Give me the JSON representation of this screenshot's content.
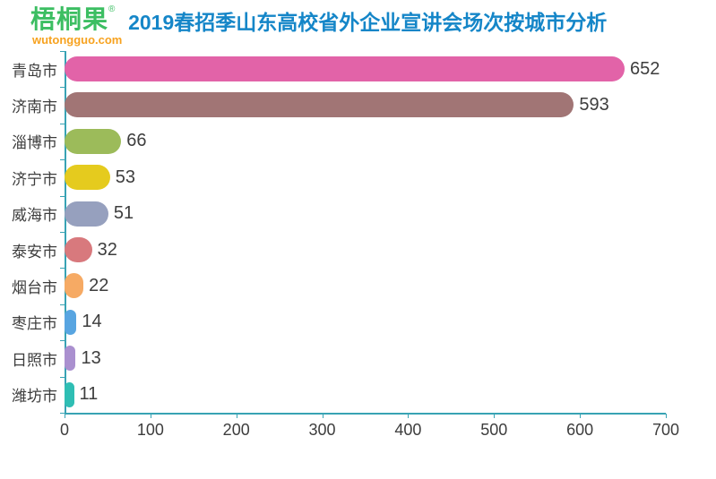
{
  "logo": {
    "name": "梧桐果",
    "reg": "®",
    "domain": "wutongguo.com",
    "green": "#3cbe62",
    "orange": "#f7a21f"
  },
  "header": {
    "title": "2019春招季山东高校省外企业宣讲会场次按城市分析",
    "title_color": "#1586c8"
  },
  "chart_data": {
    "type": "bar",
    "orientation": "horizontal",
    "title": "2019春招季山东高校省外企业宣讲会场次按城市分析",
    "categories": [
      "青岛市",
      "济南市",
      "淄博市",
      "济宁市",
      "威海市",
      "泰安市",
      "烟台市",
      "枣庄市",
      "日照市",
      "潍坊市"
    ],
    "values": [
      652,
      593,
      66,
      53,
      51,
      32,
      22,
      14,
      13,
      11
    ],
    "bar_colors": [
      "#e263a8",
      "#a17575",
      "#9cbb5a",
      "#e5cb1e",
      "#96a0be",
      "#d8797d",
      "#f6aa64",
      "#58a5e1",
      "#aa90cf",
      "#2fbeb4"
    ],
    "xlabel": "",
    "ylabel": "",
    "xlim": [
      0,
      700
    ],
    "x_ticks": [
      0,
      100,
      200,
      300,
      400,
      500,
      600,
      700
    ],
    "grid": false,
    "legend": "none",
    "axis_color": "#38a3b4",
    "label_color": "#3d3d3d"
  }
}
